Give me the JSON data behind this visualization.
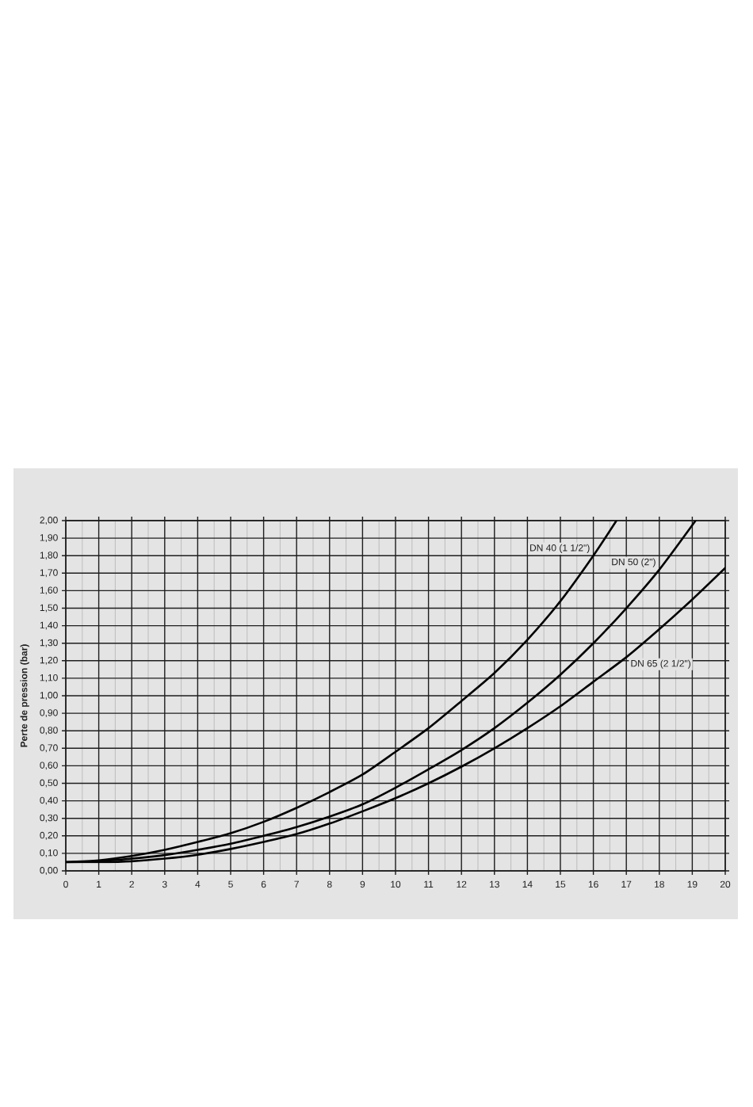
{
  "chart_data": {
    "type": "line",
    "ylabel": "Perte de pression (bar)",
    "xlim": [
      0,
      20
    ],
    "ylim": [
      0,
      2
    ],
    "xticks": [
      0,
      {
        "value": 0.5,
        "label": null
      },
      1,
      {
        "value": 1.5,
        "label": null
      },
      2,
      {
        "value": 2.5,
        "label": null
      },
      3,
      {
        "value": 3.5,
        "label": null
      },
      4,
      {
        "value": 4.5,
        "label": null
      },
      5,
      {
        "value": 5.5,
        "label": null
      },
      6,
      {
        "value": 6.5,
        "label": null
      },
      7,
      {
        "value": 7.5,
        "label": null
      },
      8,
      {
        "value": 8.5,
        "label": null
      },
      9,
      {
        "value": 9.5,
        "label": null
      },
      10,
      {
        "value": 10.5,
        "label": null
      },
      11,
      {
        "value": 11.5,
        "label": null
      },
      12,
      {
        "value": 12.5,
        "label": null
      },
      13,
      {
        "value": 13.5,
        "label": null
      },
      14,
      {
        "value": 14.5,
        "label": null
      },
      15,
      {
        "value": 15.5,
        "label": null
      },
      16,
      {
        "value": 16.5,
        "label": null
      },
      17,
      {
        "value": 17.5,
        "label": null
      },
      18,
      {
        "value": 18.5,
        "label": null
      },
      19,
      {
        "value": 19.5,
        "label": null
      },
      20
    ],
    "yticks": [
      {
        "value": 0,
        "label": "0,00"
      },
      {
        "value": 0.1,
        "label": "0,10"
      },
      {
        "value": 0.2,
        "label": "0,20"
      },
      {
        "value": 0.3,
        "label": "0,30"
      },
      {
        "value": 0.4,
        "label": "0,40"
      },
      {
        "value": 0.5,
        "label": "0,50"
      },
      {
        "value": 0.6,
        "label": "0,60"
      },
      {
        "value": 0.7,
        "label": "0,70"
      },
      {
        "value": 0.8,
        "label": "0,80"
      },
      {
        "value": 0.9,
        "label": "0,90"
      },
      {
        "value": 1.0,
        "label": "1,00"
      },
      {
        "value": 1.1,
        "label": "1,10"
      },
      {
        "value": 1.2,
        "label": "1,20"
      },
      {
        "value": 1.3,
        "label": "1,30"
      },
      {
        "value": 1.4,
        "label": "1,40"
      },
      {
        "value": 1.5,
        "label": "1,50"
      },
      {
        "value": 1.6,
        "label": "1,60"
      },
      {
        "value": 1.7,
        "label": "1,70"
      },
      {
        "value": 1.8,
        "label": "1,80"
      },
      {
        "value": 1.9,
        "label": "1,90"
      },
      {
        "value": 2.0,
        "label": "2,00"
      }
    ],
    "grid": true,
    "series": [
      {
        "name": "DN 40 (1 1/2\")",
        "color": "#000000",
        "x": [
          0,
          1,
          2,
          3,
          4,
          5,
          6,
          7,
          8,
          9,
          10,
          11,
          12,
          13,
          14,
          15,
          16,
          16.7
        ],
        "values": [
          0.05,
          0.06,
          0.085,
          0.12,
          0.165,
          0.215,
          0.28,
          0.36,
          0.45,
          0.55,
          0.68,
          0.815,
          0.97,
          1.13,
          1.32,
          1.54,
          1.8,
          2.0
        ]
      },
      {
        "name": "DN 50 (2\")",
        "color": "#000000",
        "x": [
          0,
          1,
          2,
          3,
          4,
          5,
          6,
          7,
          8,
          9,
          10,
          11,
          12,
          13,
          14,
          15,
          16,
          17,
          18,
          19.1
        ],
        "values": [
          0.05,
          0.055,
          0.07,
          0.09,
          0.12,
          0.155,
          0.2,
          0.25,
          0.31,
          0.38,
          0.475,
          0.58,
          0.69,
          0.815,
          0.96,
          1.12,
          1.3,
          1.5,
          1.72,
          2.0
        ]
      },
      {
        "name": "DN 65 (2 1/2\")",
        "color": "#000000",
        "x": [
          0,
          1,
          2,
          3,
          4,
          5,
          6,
          7,
          8,
          9,
          10,
          11,
          12,
          13,
          14,
          15,
          16,
          17,
          18,
          19,
          20
        ],
        "values": [
          0.05,
          0.05,
          0.055,
          0.07,
          0.092,
          0.125,
          0.165,
          0.21,
          0.27,
          0.34,
          0.415,
          0.5,
          0.595,
          0.7,
          0.815,
          0.94,
          1.08,
          1.22,
          1.38,
          1.55,
          1.73
        ]
      }
    ]
  }
}
